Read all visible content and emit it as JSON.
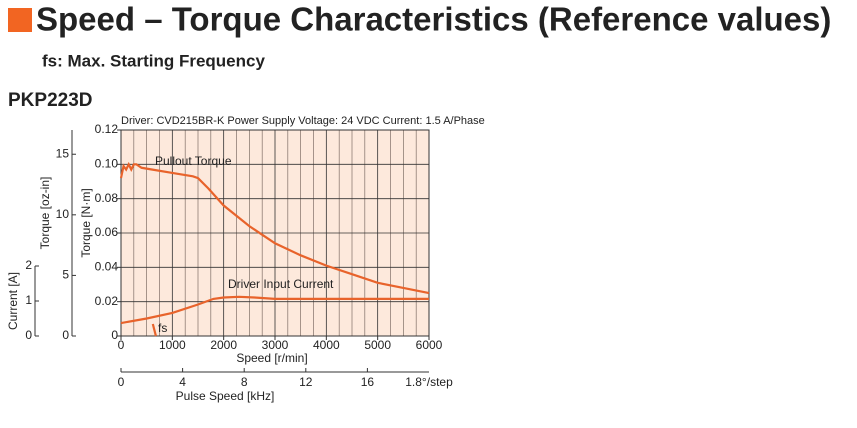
{
  "chart_data": {
    "type": "line",
    "title": "Speed – Torque Characteristics (Reference values)",
    "subtitle": "fs: Max. Starting Frequency",
    "model": "PKP223D",
    "header": "Driver: CVD215BR-K  Power Supply Voltage: 24 VDC  Current: 1.5 A/Phase",
    "xlabel": "Speed [r/min]",
    "ylabel": "Torque [N·m]",
    "y2label": "Torque [oz-in]",
    "y3label": "Current [A]",
    "x2label": "Pulse Speed [kHz]",
    "x2_end_label": "1.8°/step",
    "xlim": [
      0,
      6000
    ],
    "xticks": [
      0,
      1000,
      2000,
      3000,
      4000,
      5000,
      6000
    ],
    "ylim": [
      0,
      0.12
    ],
    "yticks": [
      0,
      0.02,
      0.04,
      0.06,
      0.08,
      {
        "value": 0.1,
        "label": "0.10"
      },
      0.12
    ],
    "y2lim": [
      0,
      17
    ],
    "y2ticks": [
      0,
      5,
      10,
      15
    ],
    "y3lim": [
      0,
      2
    ],
    "y3ticks": [
      0,
      1,
      2
    ],
    "x2lim": [
      0,
      20
    ],
    "x2ticks": [
      0,
      4,
      8,
      12,
      16
    ],
    "grid": true,
    "series": [
      {
        "name": "Pullout Torque",
        "color": "#e8632b",
        "x": [
          0,
          50,
          100,
          150,
          200,
          250,
          300,
          400,
          600,
          1000,
          1400,
          1500,
          1700,
          2000,
          2500,
          3000,
          3500,
          4000,
          4500,
          5000,
          5500,
          6000
        ],
        "values": [
          0.092,
          0.099,
          0.097,
          0.1,
          0.097,
          0.1,
          0.1,
          0.098,
          0.097,
          0.095,
          0.093,
          0.092,
          0.086,
          0.076,
          0.064,
          0.054,
          0.047,
          0.041,
          0.036,
          0.031,
          0.028,
          0.025
        ]
      },
      {
        "name": "Driver Input Current",
        "color": "#e8632b",
        "axis": "y3",
        "x": [
          0,
          500,
          1000,
          1500,
          1800,
          2000,
          2300,
          2600,
          3000,
          4000,
          5000,
          6000
        ],
        "values": [
          0.37,
          0.5,
          0.66,
          0.9,
          1.06,
          1.1,
          1.12,
          1.1,
          1.06,
          1.06,
          1.06,
          1.06
        ]
      },
      {
        "name": "fs",
        "color": "#e8632b",
        "x": [
          620,
          680
        ],
        "values": [
          0.007,
          0
        ]
      }
    ]
  }
}
